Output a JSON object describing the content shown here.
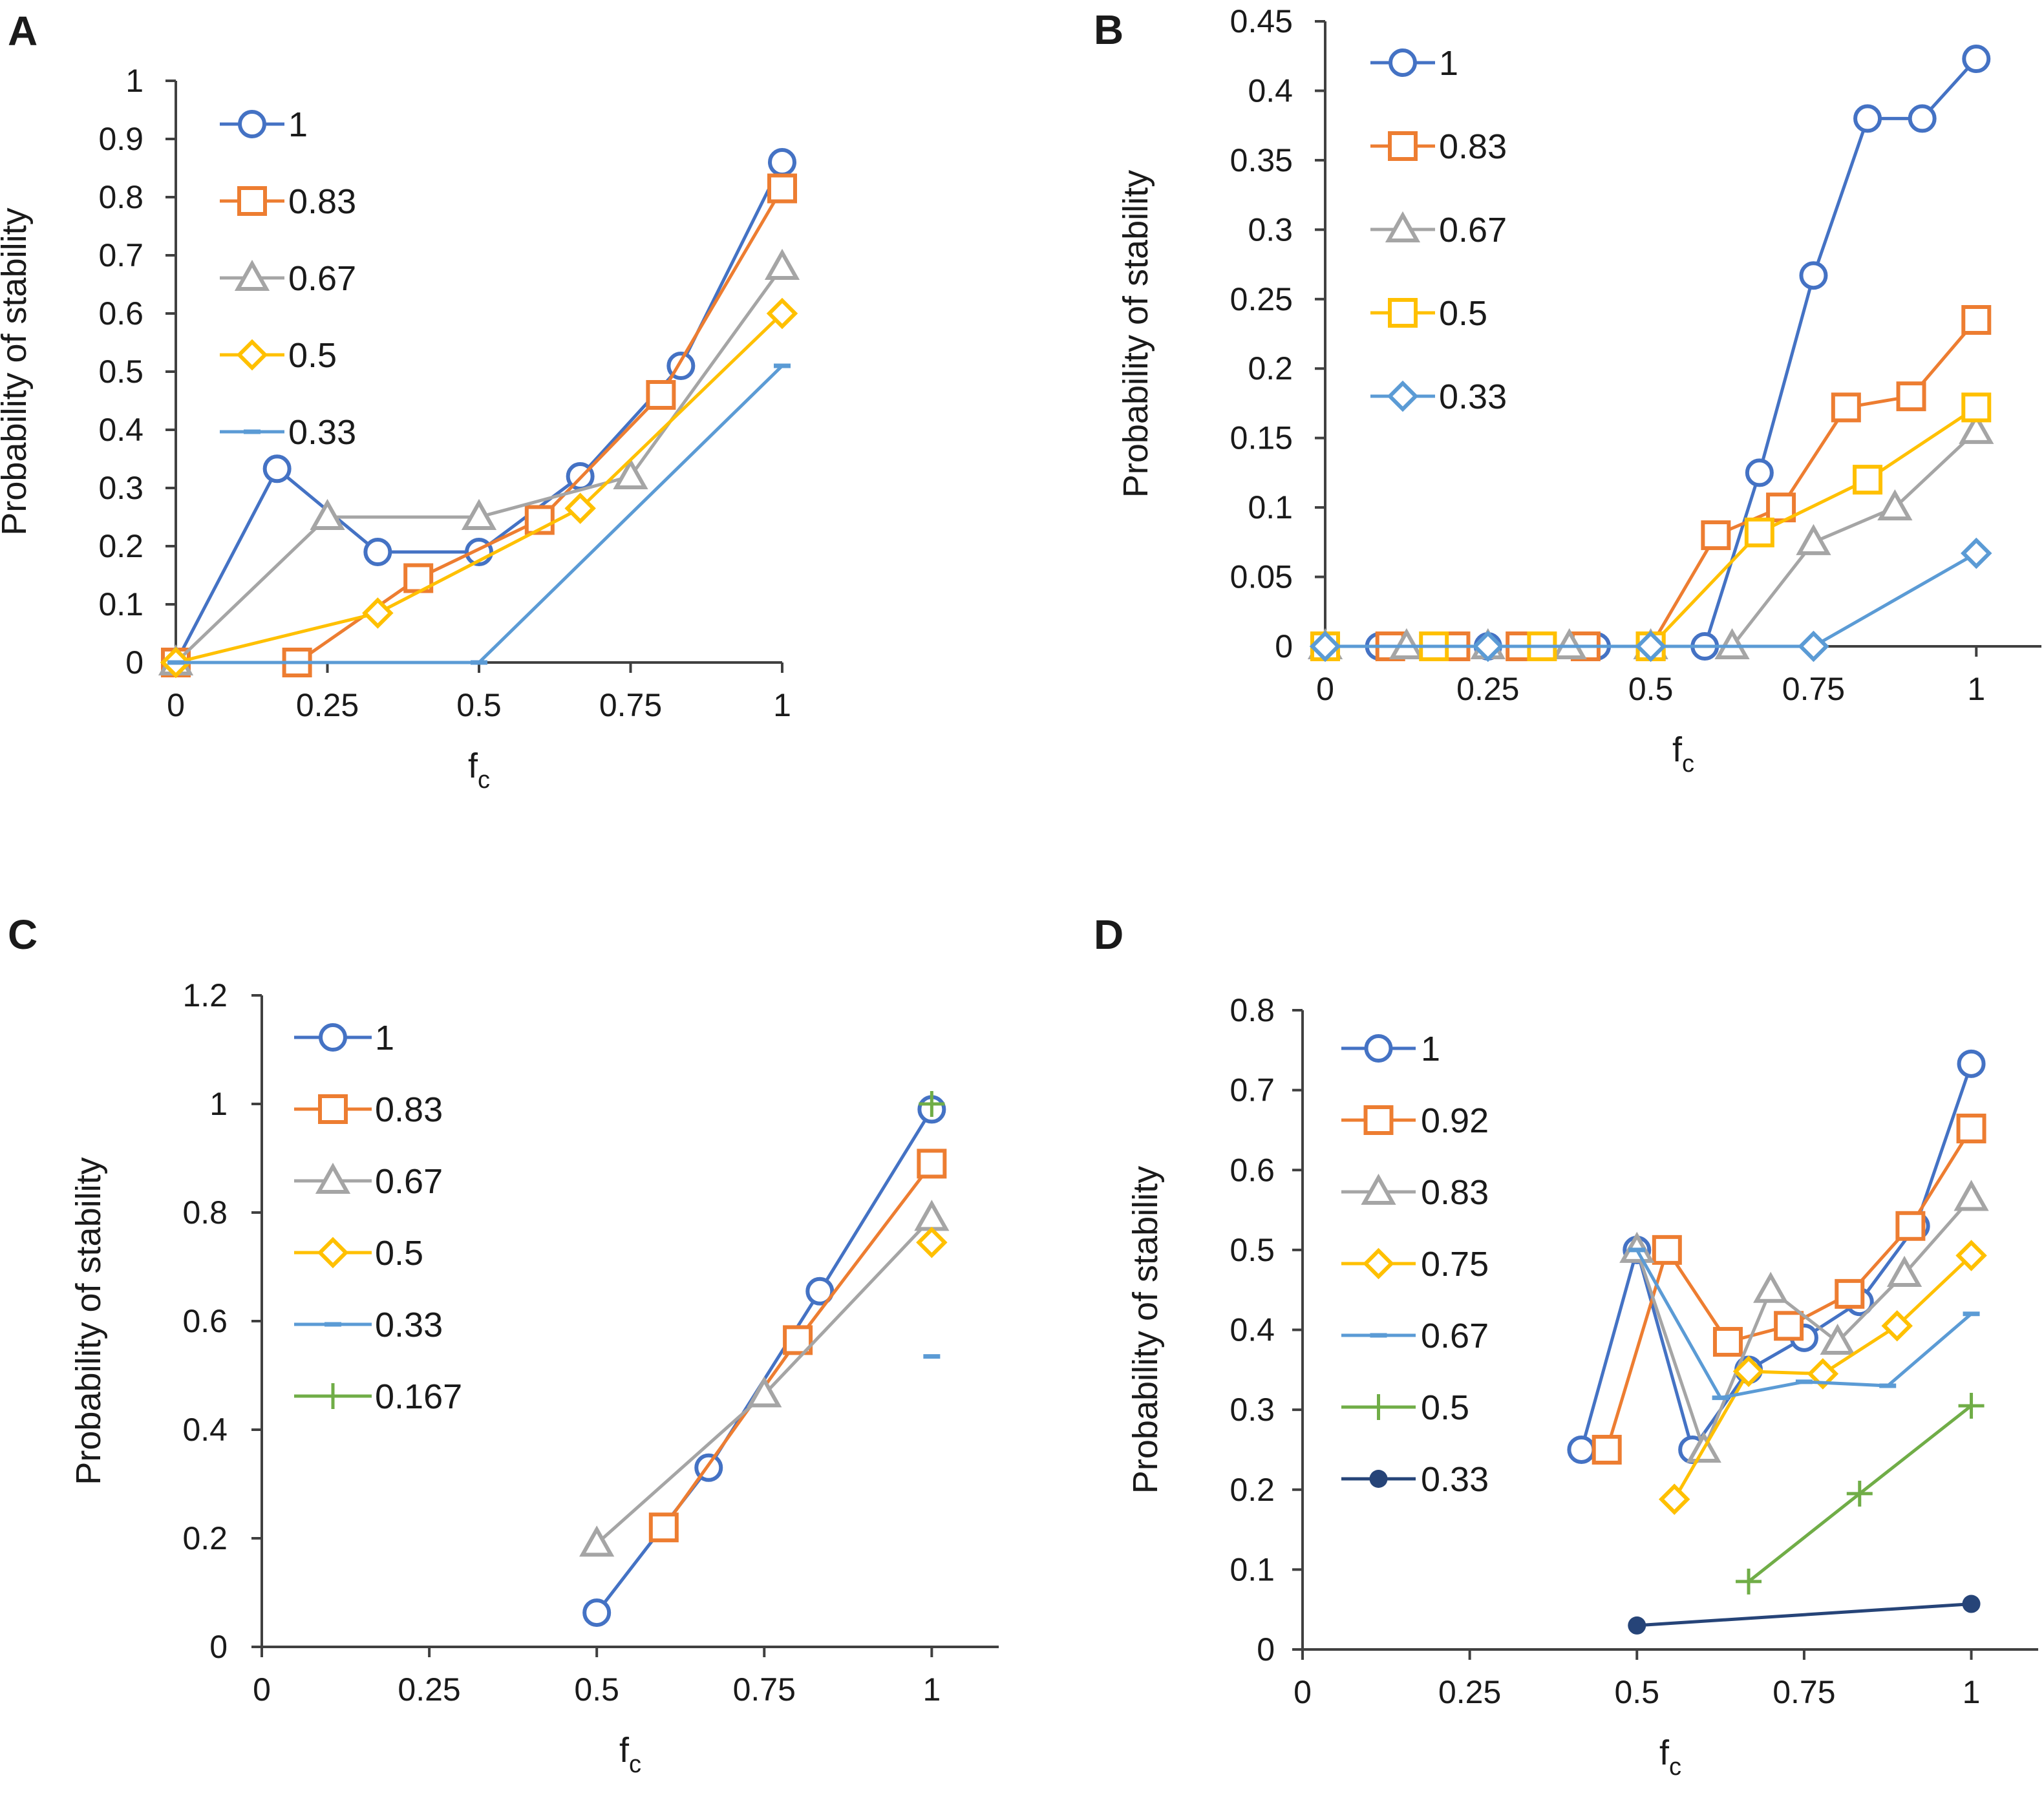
{
  "colors": {
    "blue": "#4472C4",
    "orange": "#ED7D31",
    "gray": "#A5A5A5",
    "yellow": "#FFC000",
    "lightblue": "#5B9BD5",
    "green": "#70AD47",
    "navy": "#264478"
  },
  "chart_data": [
    {
      "type": "line",
      "panel": "A",
      "xlabel": "f",
      "xlabel_sub": "c",
      "ylabel": "Probability of stability",
      "xlim": [
        0,
        1
      ],
      "ylim": [
        0,
        1
      ],
      "xticks": [
        0,
        0.25,
        0.5,
        0.75,
        1
      ],
      "xtick_labels": [
        "0",
        "0.25",
        "0.5",
        "0.75",
        "1"
      ],
      "yticks": [
        0,
        0.1,
        0.2,
        0.3,
        0.4,
        0.5,
        0.6,
        0.7,
        0.8,
        0.9,
        1
      ],
      "ytick_labels": [
        "0",
        "0.1",
        "0.2",
        "0.3",
        "0.4",
        "0.5",
        "0.6",
        "0.7",
        "0.8",
        "0.9",
        "1"
      ],
      "series": [
        {
          "name": "1",
          "color": "blue",
          "marker": "circle",
          "x": [
            0,
            0.167,
            0.333,
            0.5,
            0.667,
            0.833,
            1
          ],
          "y": [
            0,
            0.333,
            0.19,
            0.19,
            0.32,
            0.51,
            0.86
          ]
        },
        {
          "name": "0.83",
          "color": "orange",
          "marker": "square",
          "x": [
            0,
            0.2,
            0.4,
            0.6,
            0.8,
            1
          ],
          "y": [
            0,
            0,
            0.145,
            0.245,
            0.46,
            0.815
          ]
        },
        {
          "name": "0.67",
          "color": "gray",
          "marker": "triangle",
          "x": [
            0,
            0.25,
            0.5,
            0.75,
            1
          ],
          "y": [
            0,
            0.25,
            0.25,
            0.32,
            0.68
          ]
        },
        {
          "name": "0.5",
          "color": "yellow",
          "marker": "diamond",
          "x": [
            0,
            0.333,
            0.667,
            1
          ],
          "y": [
            0,
            0.085,
            0.265,
            0.6
          ]
        },
        {
          "name": "0.33",
          "color": "lightblue",
          "marker": "dash",
          "x": [
            0,
            0.5,
            1
          ],
          "y": [
            0,
            0,
            0.51
          ]
        }
      ]
    },
    {
      "type": "line",
      "panel": "B",
      "xlabel": "f",
      "xlabel_sub": "c",
      "ylabel": "Probability of stability",
      "xlim": [
        0,
        1.1
      ],
      "ylim": [
        0,
        0.45
      ],
      "xticks": [
        0,
        0.25,
        0.5,
        0.75,
        1
      ],
      "xtick_labels": [
        "0",
        "0.25",
        "0.5",
        "0.75",
        "1"
      ],
      "yticks": [
        0,
        0.05,
        0.1,
        0.15,
        0.2,
        0.25,
        0.3,
        0.35,
        0.4,
        0.45
      ],
      "ytick_labels": [
        "0",
        "0.05",
        "0.1",
        "0.15",
        "0.2",
        "0.25",
        "0.3",
        "0.35",
        "0.4",
        "0.45"
      ],
      "series": [
        {
          "name": "1",
          "color": "blue",
          "marker": "circle",
          "x": [
            0,
            0.083,
            0.167,
            0.25,
            0.333,
            0.417,
            0.5,
            0.583,
            0.667,
            0.75,
            0.833,
            0.917,
            1
          ],
          "y": [
            0,
            0,
            0,
            0,
            0,
            0,
            0,
            0,
            0.125,
            0.267,
            0.38,
            0.38,
            0.423
          ]
        },
        {
          "name": "0.83",
          "color": "orange",
          "marker": "square",
          "x": [
            0,
            0.1,
            0.2,
            0.3,
            0.4,
            0.5,
            0.6,
            0.7,
            0.8,
            0.9,
            1
          ],
          "y": [
            0,
            0,
            0,
            0,
            0,
            0,
            0.08,
            0.1,
            0.172,
            0.18,
            0.235
          ]
        },
        {
          "name": "0.67",
          "color": "gray",
          "marker": "triangle",
          "x": [
            0,
            0.125,
            0.25,
            0.375,
            0.5,
            0.625,
            0.75,
            0.875,
            1
          ],
          "y": [
            0,
            0,
            0,
            0,
            0,
            0,
            0.075,
            0.1,
            0.155
          ]
        },
        {
          "name": "0.5",
          "color": "yellow",
          "marker": "square",
          "x": [
            0,
            0.167,
            0.333,
            0.5,
            0.667,
            0.833,
            1
          ],
          "y": [
            0,
            0,
            0,
            0,
            0.082,
            0.12,
            0.172
          ]
        },
        {
          "name": "0.33",
          "color": "lightblue",
          "marker": "diamond",
          "x": [
            0,
            0.25,
            0.5,
            0.75,
            1
          ],
          "y": [
            0,
            0,
            0,
            0,
            0.067
          ]
        }
      ]
    },
    {
      "type": "line",
      "panel": "C",
      "xlabel": "f",
      "xlabel_sub": "c",
      "ylabel": "Probability of stability",
      "xlim": [
        0,
        1.1
      ],
      "ylim": [
        0,
        1.2
      ],
      "xticks": [
        0,
        0.25,
        0.5,
        0.75,
        1
      ],
      "xtick_labels": [
        "0",
        "0.25",
        "0.5",
        "0.75",
        "1"
      ],
      "yticks": [
        0,
        0.2,
        0.4,
        0.6,
        0.8,
        1,
        1.2
      ],
      "ytick_labels": [
        "0",
        "0.2",
        "0.4",
        "0.6",
        "0.8",
        "1",
        "1.2"
      ],
      "series": [
        {
          "name": "1",
          "color": "blue",
          "marker": "circle",
          "x": [
            0.5,
            0.667,
            0.833,
            1
          ],
          "y": [
            0.063,
            0.33,
            0.655,
            0.99
          ]
        },
        {
          "name": "0.83",
          "color": "orange",
          "marker": "square",
          "x": [
            0.6,
            0.8,
            1
          ],
          "y": [
            0.22,
            0.565,
            0.89
          ]
        },
        {
          "name": "0.67",
          "color": "gray",
          "marker": "triangle",
          "x": [
            0.5,
            0.75,
            1
          ],
          "y": [
            0.19,
            0.465,
            0.79
          ]
        },
        {
          "name": "0.5",
          "color": "yellow",
          "marker": "diamond",
          "x": [
            1
          ],
          "y": [
            0.745
          ]
        },
        {
          "name": "0.33",
          "color": "lightblue",
          "marker": "dash",
          "x": [
            1
          ],
          "y": [
            0.535
          ]
        },
        {
          "name": "0.167",
          "color": "green",
          "marker": "plus",
          "x": [
            1
          ],
          "y": [
            1.0
          ]
        }
      ]
    },
    {
      "type": "line",
      "panel": "D",
      "xlabel": "f",
      "xlabel_sub": "c",
      "ylabel": "Probability of stability",
      "xlim": [
        0,
        1.1
      ],
      "ylim": [
        0,
        0.8
      ],
      "xticks": [
        0,
        0.25,
        0.5,
        0.75,
        1
      ],
      "xtick_labels": [
        "0",
        "0.25",
        "0.5",
        "0.75",
        "1"
      ],
      "yticks": [
        0,
        0.1,
        0.2,
        0.3,
        0.4,
        0.5,
        0.6,
        0.7,
        0.8
      ],
      "ytick_labels": [
        "0",
        "0.1",
        "0.2",
        "0.3",
        "0.4",
        "0.5",
        "0.6",
        "0.7",
        "0.8"
      ],
      "series": [
        {
          "name": "1",
          "color": "blue",
          "marker": "circle",
          "x": [
            0.417,
            0.5,
            0.583,
            0.667,
            0.75,
            0.833,
            0.917,
            1
          ],
          "y": [
            0.25,
            0.5,
            0.25,
            0.35,
            0.39,
            0.435,
            0.53,
            0.733
          ]
        },
        {
          "name": "0.92",
          "color": "orange",
          "marker": "square",
          "x": [
            0.455,
            0.545,
            0.636,
            0.727,
            0.818,
            0.909,
            1
          ],
          "y": [
            0.25,
            0.5,
            0.385,
            0.405,
            0.445,
            0.53,
            0.652
          ]
        },
        {
          "name": "0.83",
          "color": "gray",
          "marker": "triangle",
          "x": [
            0.5,
            0.6,
            0.7,
            0.8,
            0.9,
            1
          ],
          "y": [
            0.5,
            0.25,
            0.45,
            0.385,
            0.47,
            0.565
          ]
        },
        {
          "name": "0.75",
          "color": "yellow",
          "marker": "diamond",
          "x": [
            0.556,
            0.667,
            0.778,
            0.889,
            1
          ],
          "y": [
            0.188,
            0.348,
            0.345,
            0.405,
            0.493
          ]
        },
        {
          "name": "0.67",
          "color": "lightblue",
          "marker": "dash",
          "x": [
            0.5,
            0.625,
            0.75,
            0.875,
            1
          ],
          "y": [
            0.5,
            0.315,
            0.335,
            0.33,
            0.42
          ]
        },
        {
          "name": "0.5",
          "color": "green",
          "marker": "plus",
          "x": [
            0.667,
            0.833,
            1
          ],
          "y": [
            0.085,
            0.195,
            0.305
          ]
        },
        {
          "name": "0.33",
          "color": "navy",
          "marker": "dot",
          "x": [
            0.5,
            1
          ],
          "y": [
            0.03,
            0.057
          ]
        }
      ]
    }
  ]
}
